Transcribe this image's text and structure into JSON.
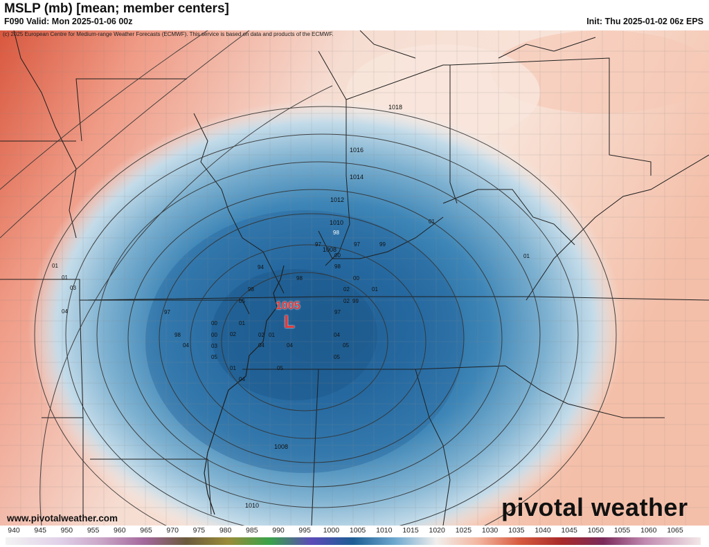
{
  "header": {
    "title": "MSLP (mb) [mean; member centers]",
    "valid": "F090 Valid: Mon 2025-01-06 00z",
    "init": "Init: Thu 2025-01-02 06z EPS",
    "copyright": "(c) 2025 European Centre for Medium-range Weather Forecasts (ECMWF). This service is based on data and products of the ECMWF."
  },
  "map": {
    "low_center": {
      "pressure": "1005",
      "symbol": "L"
    },
    "isobar_labels": [
      "1018",
      "1016",
      "1014",
      "1012",
      "1010",
      "1008",
      "1010"
    ],
    "member_centers": [
      "01",
      "01",
      "03",
      "04",
      "01",
      "98",
      "97",
      "00",
      "99",
      "97",
      "98",
      "00",
      "94",
      "98",
      "00",
      "02",
      "01",
      "98",
      "05",
      "02",
      "99",
      "97",
      "97",
      "00",
      "01",
      "02",
      "04",
      "02",
      "01",
      "04",
      "05",
      "98",
      "00",
      "03",
      "05",
      "01",
      "04",
      "05",
      "05",
      "05",
      "01"
    ],
    "colors": {
      "low": "#1f5f92",
      "mid": "#8bbcd6",
      "neutral": "#f3efea",
      "high": "#ef9a85",
      "very_high": "#d9573e"
    }
  },
  "watermark": {
    "url": "www.pivotalweather.com",
    "logo": "pivotal weather",
    "logo_icon": "sun-gear-icon"
  },
  "colorbar": {
    "ticks": [
      "940",
      "945",
      "950",
      "955",
      "960",
      "965",
      "970",
      "975",
      "980",
      "985",
      "990",
      "995",
      "1000",
      "1005",
      "1010",
      "1015",
      "1020",
      "1025",
      "1030",
      "1035",
      "1040",
      "1045",
      "1050",
      "1055",
      "1060",
      "1065"
    ]
  }
}
